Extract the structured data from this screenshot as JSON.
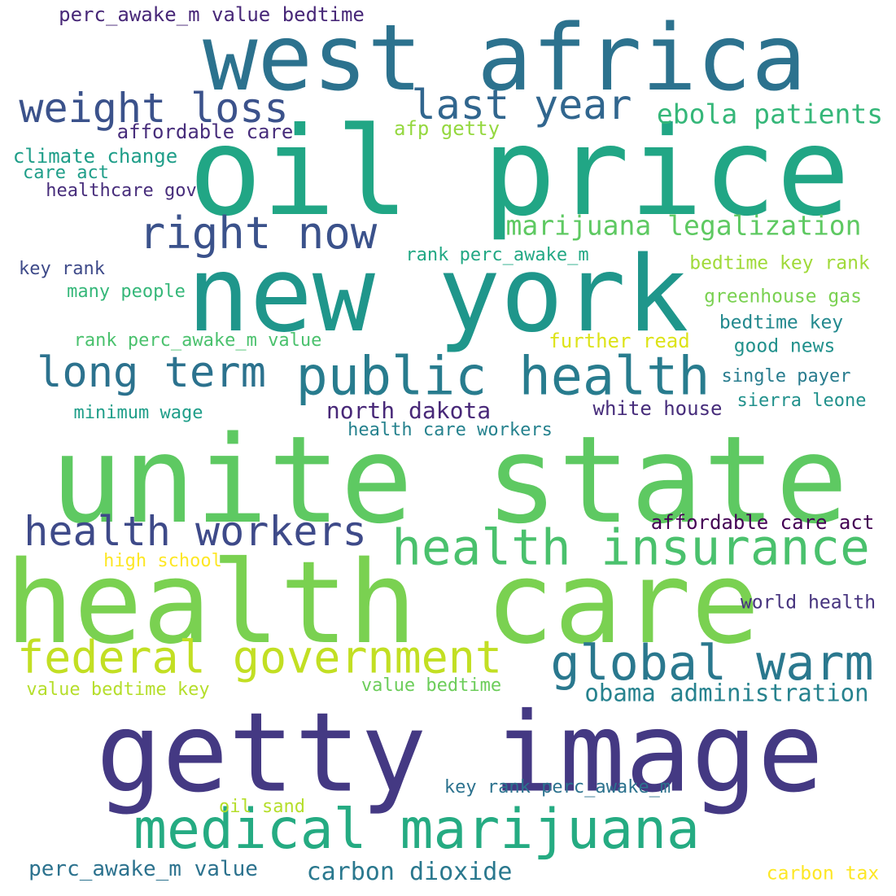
{
  "words": [
    {
      "text": "unite state",
      "color": "#5ec962"
    },
    {
      "text": "health care",
      "color": "#7ad151"
    },
    {
      "text": "getty image",
      "color": "#443983"
    },
    {
      "text": "oil price",
      "color": "#21a685"
    },
    {
      "text": "new york",
      "color": "#1f968b"
    },
    {
      "text": "west africa",
      "color": "#2c728e"
    },
    {
      "text": "public health",
      "color": "#287c8e"
    },
    {
      "text": "medical marijuana",
      "color": "#25ab82"
    },
    {
      "text": "health insurance",
      "color": "#4ac16d"
    },
    {
      "text": "federal government",
      "color": "#c2df23"
    },
    {
      "text": "global warm",
      "color": "#2a788e"
    },
    {
      "text": "right now",
      "color": "#3b528b"
    },
    {
      "text": "long term",
      "color": "#2c728e"
    },
    {
      "text": "health workers",
      "color": "#3e4a89"
    },
    {
      "text": "weight loss",
      "color": "#3b528b"
    },
    {
      "text": "last year",
      "color": "#31668e"
    },
    {
      "text": "marijuana legalization",
      "color": "#5ec962"
    },
    {
      "text": "ebola patients",
      "color": "#35b779"
    },
    {
      "text": "obama administration",
      "color": "#26828e"
    },
    {
      "text": "carbon dioxide",
      "color": "#2a788e"
    },
    {
      "text": "north dakota",
      "color": "#482878"
    },
    {
      "text": "perc_awake_m value",
      "color": "#2c728e"
    },
    {
      "text": "perc_awake_m value bedtime",
      "color": "#482878"
    },
    {
      "text": "affordable care",
      "color": "#472d7b"
    },
    {
      "text": "afp getty",
      "color": "#95d840"
    },
    {
      "text": "climate change",
      "color": "#1f9e89"
    },
    {
      "text": "care act",
      "color": "#1f9e89"
    },
    {
      "text": "healthcare gov",
      "color": "#472d7b"
    },
    {
      "text": "rank perc_awake_m",
      "color": "#22a884"
    },
    {
      "text": "bedtime key rank",
      "color": "#a0da39"
    },
    {
      "text": "key rank",
      "color": "#3e4a89"
    },
    {
      "text": "many people",
      "color": "#35b779"
    },
    {
      "text": "greenhouse gas",
      "color": "#7ad151"
    },
    {
      "text": "rank perc_awake_m value",
      "color": "#4ac16d"
    },
    {
      "text": "further read",
      "color": "#dde318"
    },
    {
      "text": "bedtime key",
      "color": "#23898e"
    },
    {
      "text": "good news",
      "color": "#21918c"
    },
    {
      "text": "single payer",
      "color": "#287c8e"
    },
    {
      "text": "sierra leone",
      "color": "#21918c"
    },
    {
      "text": "white house",
      "color": "#472d7b"
    },
    {
      "text": "minimum wage",
      "color": "#1f9e89"
    },
    {
      "text": "health care workers",
      "color": "#26828e"
    },
    {
      "text": "affordable care act",
      "color": "#440154"
    },
    {
      "text": "high school",
      "color": "#fde725"
    },
    {
      "text": "world health",
      "color": "#46337e"
    },
    {
      "text": "value bedtime key",
      "color": "#b5de2b"
    },
    {
      "text": "value bedtime",
      "color": "#6ccd5a"
    },
    {
      "text": "key rank perc_awake_m",
      "color": "#2c728e"
    },
    {
      "text": "oil sand",
      "color": "#b5de2b"
    },
    {
      "text": "carbon tax",
      "color": "#fde725"
    }
  ]
}
